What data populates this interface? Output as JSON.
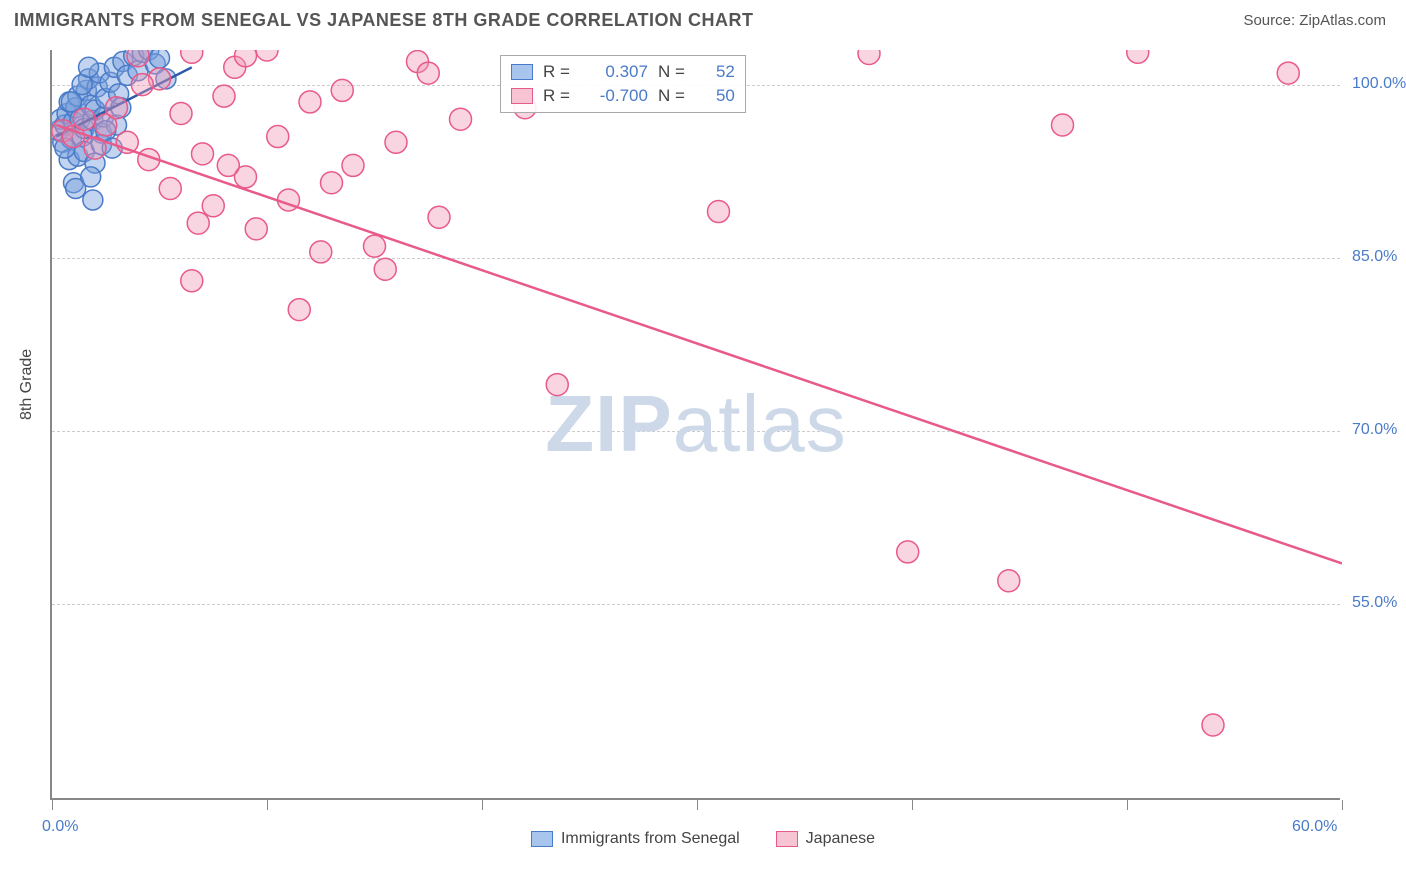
{
  "header": {
    "title": "IMMIGRANTS FROM SENEGAL VS JAPANESE 8TH GRADE CORRELATION CHART",
    "source": "Source: ZipAtlas.com"
  },
  "chart": {
    "type": "scatter",
    "watermark_prefix": "ZIP",
    "watermark_suffix": "atlas",
    "ylabel": "8th Grade",
    "xlim": [
      0,
      60
    ],
    "ylim": [
      38,
      103
    ],
    "x_ticks": [
      0,
      10,
      20,
      30,
      40,
      50,
      60
    ],
    "x_tick_labels_shown": {
      "0": "0.0%",
      "60": "60.0%"
    },
    "y_grid": [
      55,
      70,
      85,
      100
    ],
    "y_grid_labels": [
      "55.0%",
      "70.0%",
      "85.0%",
      "100.0%"
    ],
    "legend_bottom": [
      {
        "label": "Immigrants from Senegal",
        "fill": "#a8c5ed",
        "stroke": "#4a7bc8"
      },
      {
        "label": "Japanese",
        "fill": "#f7c4d4",
        "stroke": "#e85a8a"
      }
    ],
    "legend_top": [
      {
        "fill": "#a8c5ed",
        "stroke": "#4a7bc8",
        "r_label": "R =",
        "r_val": "0.307",
        "n_label": "N =",
        "n_val": "52"
      },
      {
        "fill": "#f7c4d4",
        "stroke": "#e85a8a",
        "r_label": "R =",
        "r_val": "-0.700",
        "n_label": "N =",
        "n_val": "50"
      }
    ],
    "series": [
      {
        "name": "senegal",
        "color_fill": "rgba(120,160,220,0.45)",
        "color_stroke": "#4a7bc8",
        "marker_r": 10,
        "trend": {
          "x1": 0.2,
          "y1": 95.5,
          "x2": 6.5,
          "y2": 101.5,
          "stroke": "#2a5aa8",
          "width": 2.5
        },
        "points": [
          [
            0.3,
            96
          ],
          [
            0.4,
            97
          ],
          [
            0.5,
            95
          ],
          [
            0.6,
            96.5
          ],
          [
            0.7,
            97.5
          ],
          [
            0.8,
            98.5
          ],
          [
            0.9,
            95.3
          ],
          [
            1.0,
            96.8
          ],
          [
            1.1,
            98
          ],
          [
            1.2,
            99
          ],
          [
            1.3,
            97
          ],
          [
            1.4,
            95.5
          ],
          [
            1.5,
            96.2
          ],
          [
            1.6,
            99.5
          ],
          [
            1.7,
            100.5
          ],
          [
            1.8,
            98.2
          ],
          [
            1.9,
            96.9
          ],
          [
            2.0,
            97.8
          ],
          [
            2.1,
            99.8
          ],
          [
            2.2,
            101
          ],
          [
            2.3,
            95.8
          ],
          [
            2.4,
            97.2
          ],
          [
            2.5,
            98.8
          ],
          [
            2.7,
            100.2
          ],
          [
            2.9,
            101.5
          ],
          [
            3.0,
            96.5
          ],
          [
            3.1,
            99.2
          ],
          [
            3.3,
            102
          ],
          [
            3.5,
            100.8
          ],
          [
            3.8,
            102.5
          ],
          [
            4.0,
            101.2
          ],
          [
            4.2,
            102.8
          ],
          [
            4.5,
            103
          ],
          [
            4.8,
            101.8
          ],
          [
            5.0,
            102.3
          ],
          [
            5.3,
            100.5
          ],
          [
            0.8,
            93.5
          ],
          [
            1.2,
            93.8
          ],
          [
            1.5,
            94.2
          ],
          [
            2.0,
            93.2
          ],
          [
            1.0,
            91.5
          ],
          [
            1.8,
            92
          ],
          [
            0.6,
            94.5
          ],
          [
            2.3,
            94.8
          ],
          [
            0.9,
            98.5
          ],
          [
            1.4,
            100
          ],
          [
            1.7,
            101.5
          ],
          [
            2.5,
            96
          ],
          [
            3.2,
            98
          ],
          [
            1.1,
            91
          ],
          [
            1.9,
            90
          ],
          [
            2.8,
            94.5
          ]
        ]
      },
      {
        "name": "japanese",
        "color_fill": "rgba(240,150,180,0.4)",
        "color_stroke": "#e85a8a",
        "marker_r": 11,
        "trend": {
          "x1": 0.2,
          "y1": 96.5,
          "x2": 60,
          "y2": 58.5,
          "stroke": "#e85a8a",
          "width": 2.5
        },
        "points": [
          [
            0.5,
            96
          ],
          [
            1.0,
            95.5
          ],
          [
            1.5,
            97
          ],
          [
            2.0,
            94.5
          ],
          [
            2.5,
            96.5
          ],
          [
            3.0,
            98
          ],
          [
            3.5,
            95
          ],
          [
            4.0,
            102.5
          ],
          [
            4.5,
            93.5
          ],
          [
            5.0,
            100.5
          ],
          [
            5.5,
            91
          ],
          [
            6.0,
            97.5
          ],
          [
            6.5,
            102.8
          ],
          [
            7.0,
            94
          ],
          [
            7.5,
            89.5
          ],
          [
            8.0,
            99
          ],
          [
            8.5,
            101.5
          ],
          [
            9.0,
            92
          ],
          [
            9.5,
            87.5
          ],
          [
            10.0,
            103
          ],
          [
            10.5,
            95.5
          ],
          [
            11.0,
            90
          ],
          [
            12.0,
            98.5
          ],
          [
            13.0,
            91.5
          ],
          [
            14.0,
            93
          ],
          [
            15.0,
            86
          ],
          [
            16.0,
            95
          ],
          [
            17.0,
            102
          ],
          [
            18.0,
            88.5
          ],
          [
            22.0,
            98
          ],
          [
            6.5,
            83
          ],
          [
            15.5,
            84
          ],
          [
            11.5,
            80.5
          ],
          [
            9.0,
            102.5
          ],
          [
            17.5,
            101
          ],
          [
            23.5,
            74
          ],
          [
            31.0,
            89
          ],
          [
            38.0,
            102.7
          ],
          [
            47.0,
            96.5
          ],
          [
            50.5,
            102.8
          ],
          [
            57.5,
            101
          ],
          [
            39.8,
            59.5
          ],
          [
            44.5,
            57
          ],
          [
            54.0,
            44.5
          ],
          [
            4.2,
            100
          ],
          [
            6.8,
            88
          ],
          [
            12.5,
            85.5
          ],
          [
            8.2,
            93
          ],
          [
            13.5,
            99.5
          ],
          [
            19.0,
            97
          ]
        ]
      }
    ],
    "background_color": "#ffffff",
    "grid_color": "#cccccc"
  }
}
